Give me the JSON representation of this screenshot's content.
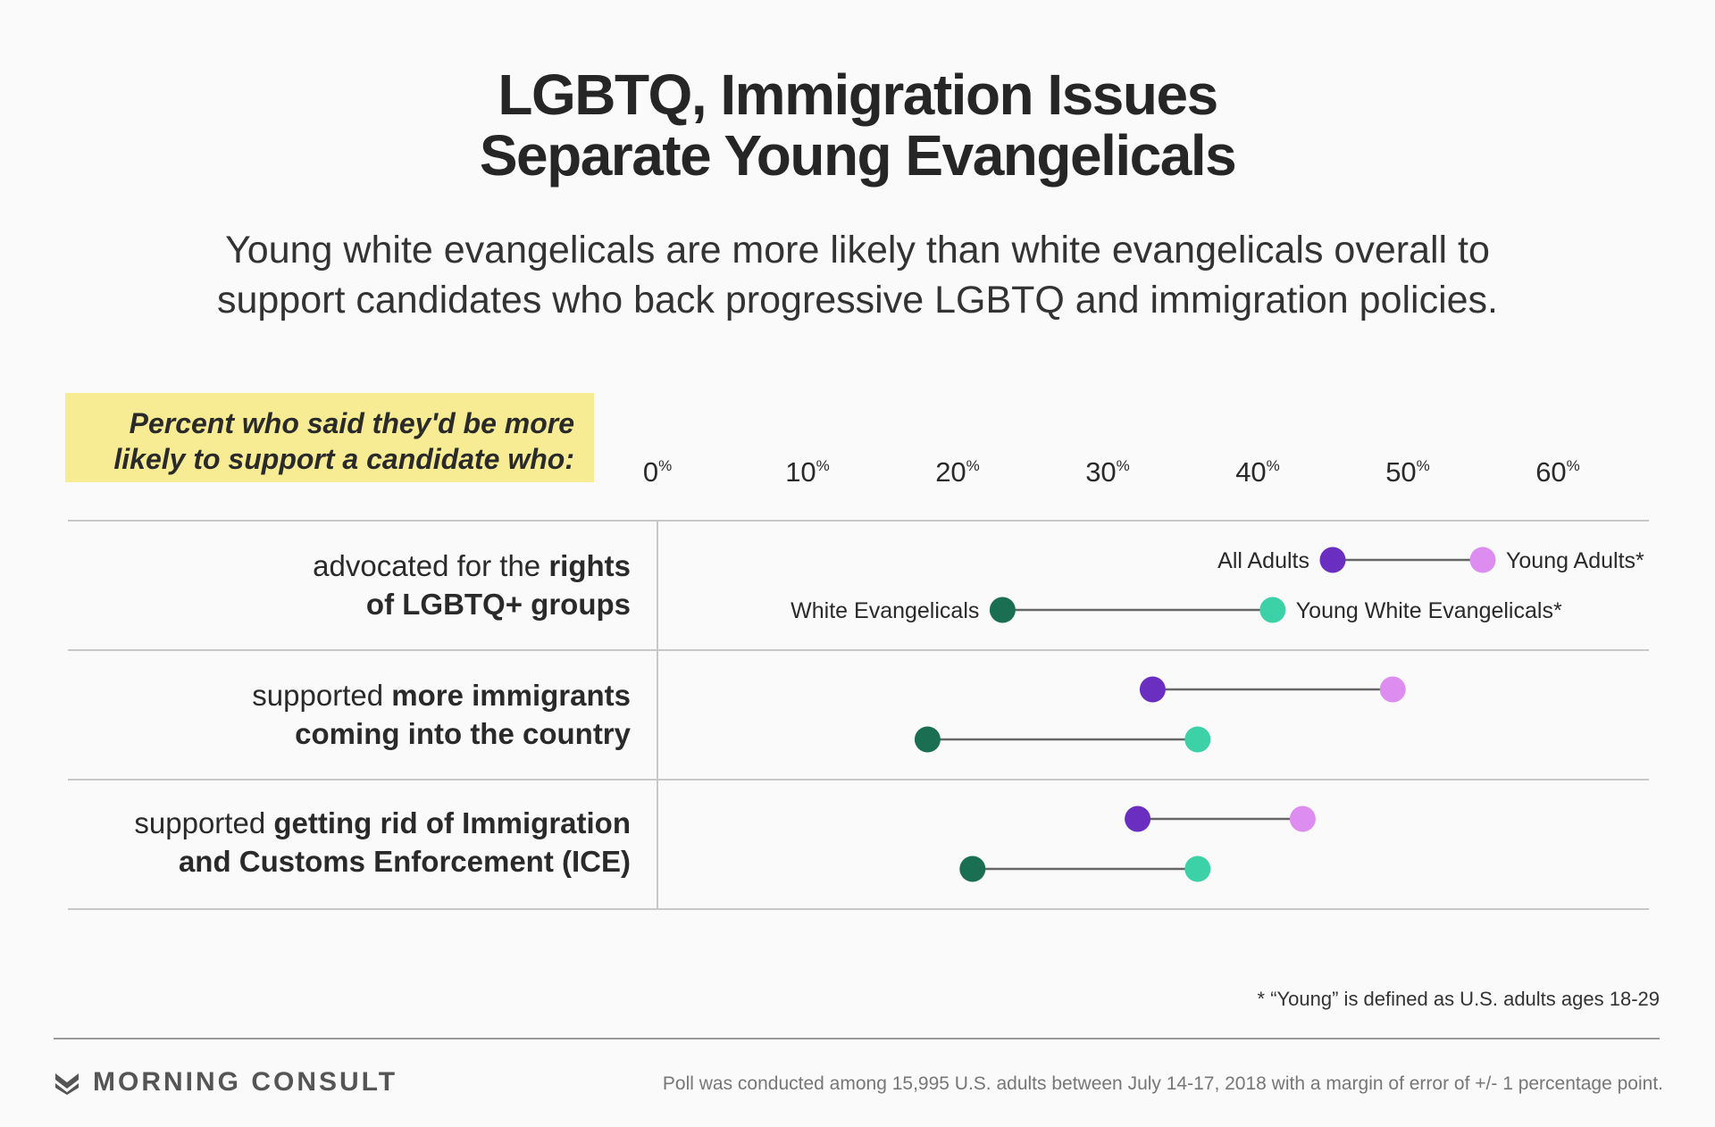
{
  "title_line1": "LGBTQ, Immigration Issues",
  "title_line2": "Separate Young Evangelicals",
  "subtitle_line1": "Young white evangelicals are more likely than white evangelicals overall to",
  "subtitle_line2": "support candidates who back progressive LGBTQ and immigration policies.",
  "question_line1": "Percent who said they'd be more",
  "question_line2": "likely to support a candidate who:",
  "footnote": "* “Young” is defined as U.S. adults ages 18-29",
  "brand": "MORNING CONSULT",
  "source_note": "Poll was conducted among 15,995 U.S. adults between July 14-17, 2018 with a margin of error of +/- 1 percentage point.",
  "rows": [
    {
      "prefix": "advocated for the ",
      "bold1": "rights",
      "bold2": "of LGBTQ+ groups"
    },
    {
      "prefix": "supported ",
      "bold1": "more immigrants",
      "bold2": "coming into the country"
    },
    {
      "prefix": "supported ",
      "bold1": "getting rid of Immigration",
      "bold2": "and Customs Enforcement (ICE)"
    }
  ],
  "colors": {
    "all_adults": "#6a2ec0",
    "young_adults": "#dd8cef",
    "white_evangelicals": "#1a6e52",
    "young_white_evangelicals": "#3dd1a8",
    "connector": "#666666",
    "rule": "#c8c8c8",
    "highlight": "#f7eb94"
  },
  "chart_data": {
    "type": "dumbbell",
    "xlim": [
      0,
      60
    ],
    "ticks": [
      0,
      10,
      20,
      30,
      40,
      50,
      60
    ],
    "tick_suffix": "%",
    "categories": [
      "advocated for the rights of LGBTQ+ groups",
      "supported more immigrants coming into the country",
      "supported getting rid of Immigration and Customs Enforcement (ICE)"
    ],
    "series": [
      {
        "name": "All Adults",
        "values": [
          45,
          33,
          32
        ]
      },
      {
        "name": "Young Adults*",
        "values": [
          55,
          49,
          43
        ]
      },
      {
        "name": "White Evangelicals",
        "values": [
          23,
          18,
          21
        ]
      },
      {
        "name": "Young White Evangelicals*",
        "values": [
          41,
          36,
          36
        ]
      }
    ],
    "pairs": [
      {
        "from": "All Adults",
        "to": "Young Adults*"
      },
      {
        "from": "White Evangelicals",
        "to": "Young White Evangelicals*"
      }
    ],
    "labels_on_first_row": true
  }
}
